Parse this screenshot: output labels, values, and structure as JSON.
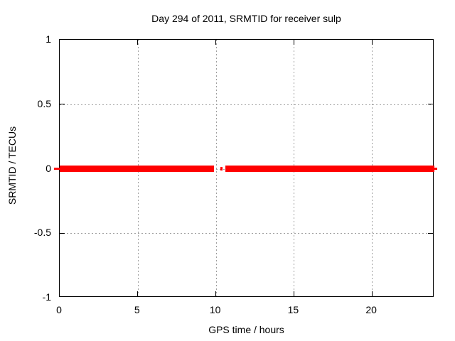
{
  "page": {
    "background": "#ffffff"
  },
  "chart_data": {
    "type": "line",
    "title": "Day 294 of 2011, SRMTID for receiver sulp",
    "xlabel": "GPS time / hours",
    "ylabel": "SRMTID / TECUs",
    "xlim": [
      0,
      24
    ],
    "ylim": [
      -1,
      1
    ],
    "x_ticks": [
      0,
      5,
      10,
      15,
      20
    ],
    "x_tick_labels": [
      "0",
      "5",
      "10",
      "15",
      "20"
    ],
    "y_ticks": [
      1,
      0.5,
      0,
      -0.5,
      -1
    ],
    "y_tick_labels": [
      "1",
      "0.5",
      "0",
      "-0.5",
      "-1"
    ],
    "grid": true,
    "legend": "none",
    "colors": {
      "grid": "#9e9e9e",
      "border": "#000000",
      "text": "#000000",
      "background": "#ffffff"
    },
    "series": [
      {
        "name": "SRMTID",
        "color": "#ff0000",
        "y_value": 0,
        "segments": [
          {
            "from_hours": 0,
            "to_hours": 9.9
          },
          {
            "from_hours": 10.28,
            "to_hours": 10.45,
            "size": "small"
          },
          {
            "from_hours": 10.62,
            "to_hours": 24
          }
        ],
        "edge_overhang_hours": [
          {
            "from_hours": -0.35,
            "to_hours": 0.03
          },
          {
            "from_hours": 23.97,
            "to_hours": 24.16
          }
        ]
      }
    ]
  }
}
